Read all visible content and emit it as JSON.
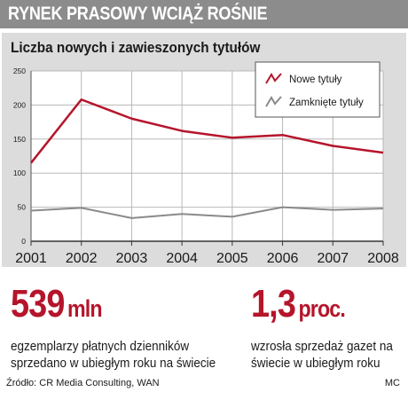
{
  "header": {
    "title": "RYNEK PRASOWY WCIĄŻ ROŚNIE"
  },
  "chart_data": {
    "type": "line",
    "title": "Liczba nowych i zawieszonych tytułów",
    "x": [
      "2001",
      "2002",
      "2003",
      "2004",
      "2005",
      "2006",
      "2007",
      "2008"
    ],
    "yticks": [
      "0",
      "50",
      "100",
      "150",
      "200",
      "250"
    ],
    "ylim": [
      0,
      250
    ],
    "grid": true,
    "legend_position": "top-right",
    "series": [
      {
        "name": "Nowe tytuły",
        "color": "#b5152b",
        "values": [
          115,
          208,
          180,
          162,
          152,
          156,
          140,
          130
        ]
      },
      {
        "name": "Zamknięte tytuły",
        "color": "#8a8a8a",
        "values": [
          45,
          49,
          34,
          40,
          36,
          50,
          46,
          48
        ]
      }
    ]
  },
  "stats": [
    {
      "number": "539",
      "unit": "mln",
      "description": "egzemplarzy płatnych dzienników sprzedano w ubiegłym roku na świecie"
    },
    {
      "number": "1,3",
      "unit": "proc.",
      "description": "wzrosła sprzedaż gazet na świecie w ubiegłym roku"
    }
  ],
  "footer": {
    "source": "Źródło: CR Media Consulting, WAN",
    "credit": "MC"
  }
}
